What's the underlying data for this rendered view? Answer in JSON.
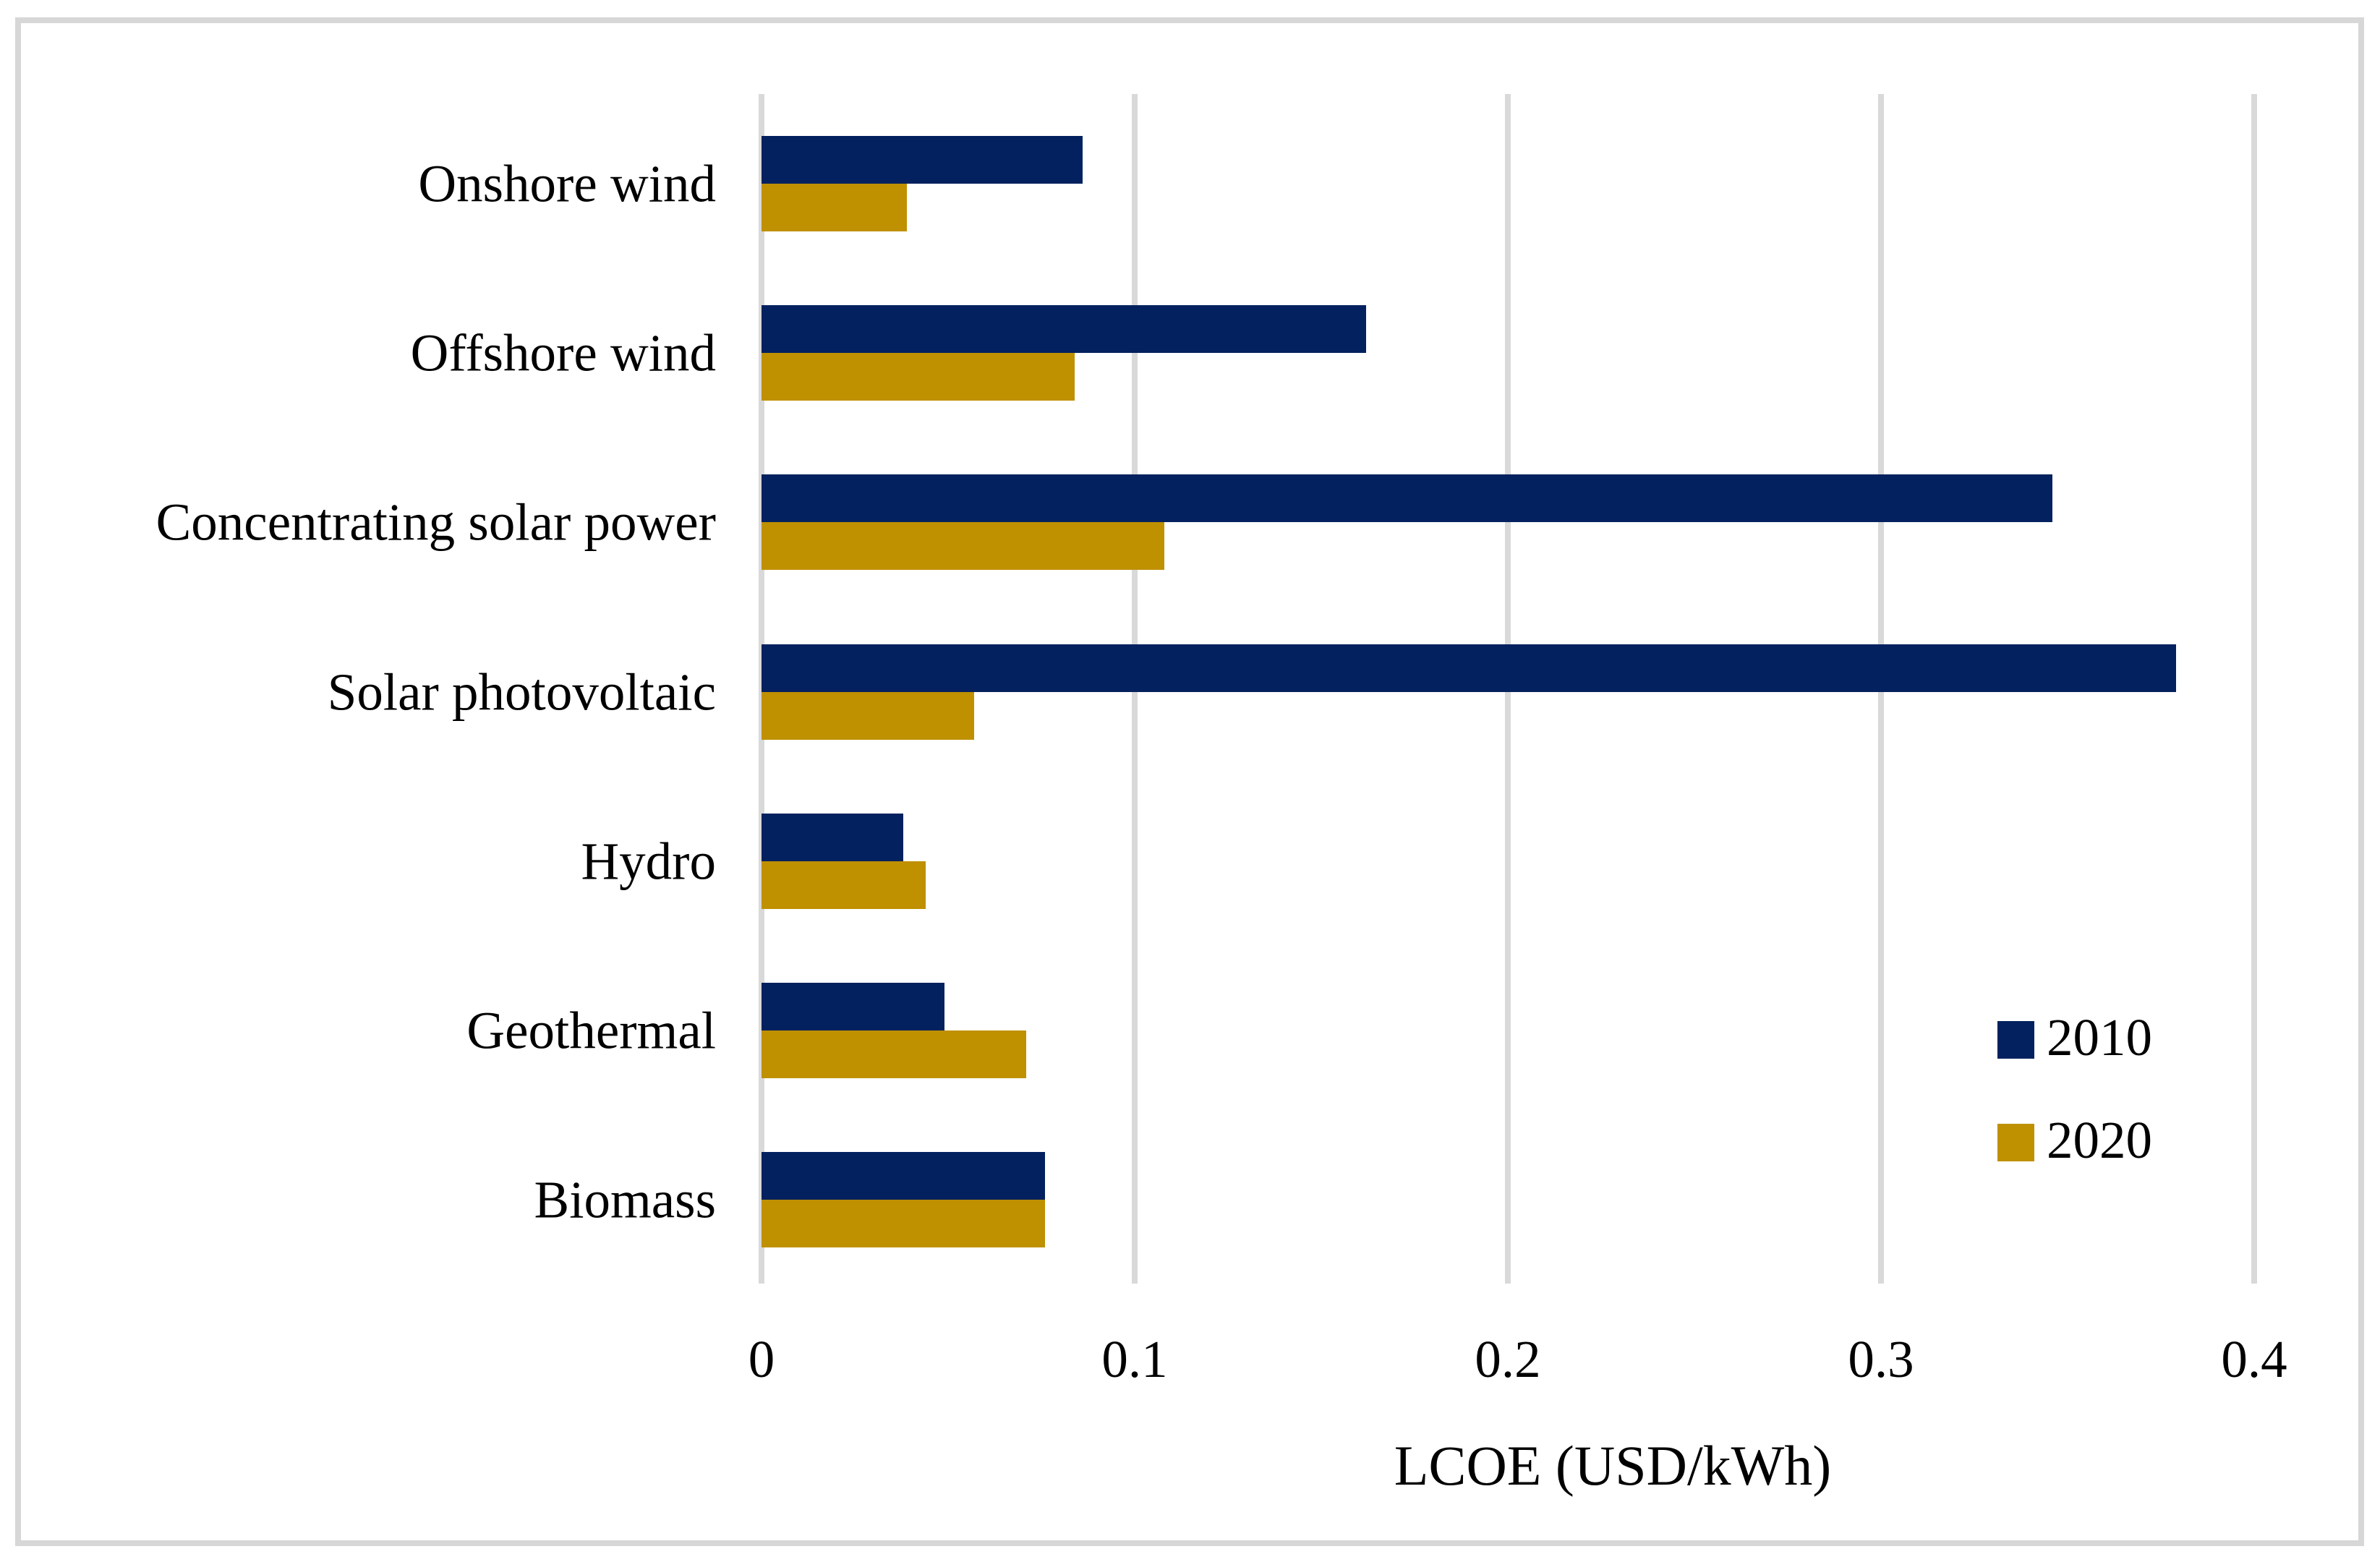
{
  "figure": {
    "background": "#ffffff",
    "border_color": "#d7d7d7"
  },
  "chart_data": {
    "type": "bar",
    "orientation": "horizontal",
    "title": "",
    "xlabel": "LCOE (USD/kWh)",
    "ylabel": "",
    "categories": [
      "Onshore wind",
      "Offshore wind",
      "Concentrating solar power",
      "Solar photovoltaic",
      "Hydro",
      "Geothermal",
      "Biomass"
    ],
    "series": [
      {
        "name": "2010",
        "color": "#03215e",
        "values": [
          0.086,
          0.162,
          0.346,
          0.379,
          0.038,
          0.049,
          0.076
        ]
      },
      {
        "name": "2020",
        "color": "#bf9000",
        "values": [
          0.039,
          0.084,
          0.108,
          0.057,
          0.044,
          0.071,
          0.076
        ]
      }
    ],
    "xlim": [
      0,
      0.4
    ],
    "xticks": [
      0,
      0.1,
      0.2,
      0.3,
      0.4
    ],
    "xtick_labels": [
      "0",
      "0.1",
      "0.2",
      "0.3",
      "0.4"
    ],
    "grid": true,
    "grid_color": "#d9d9d9",
    "legend": {
      "position": "middle-right",
      "entries": [
        "2010",
        "2020"
      ]
    }
  }
}
